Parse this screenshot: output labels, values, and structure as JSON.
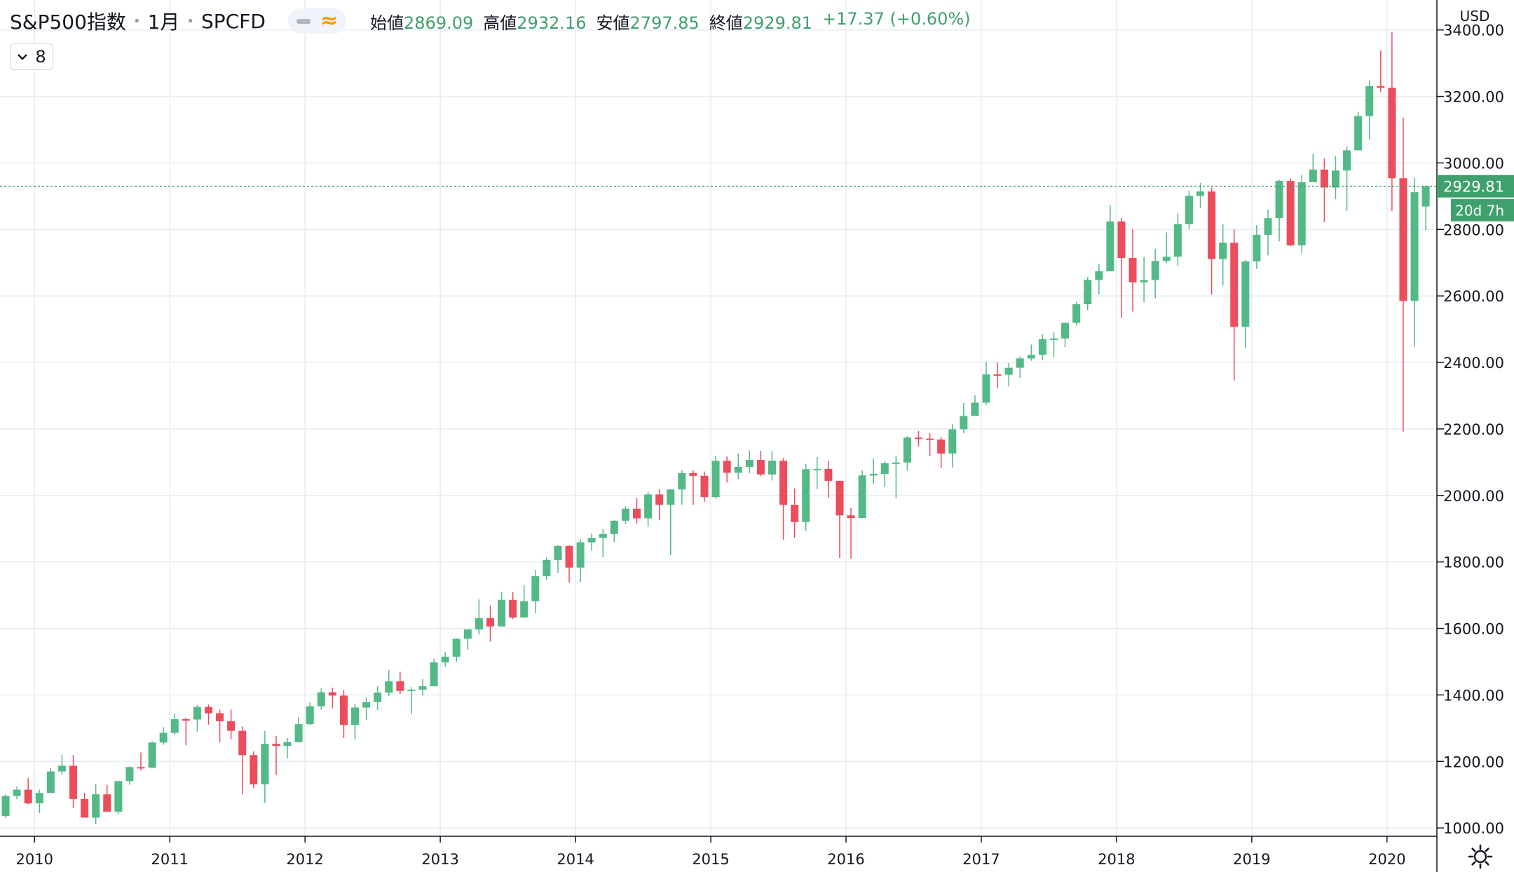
{
  "header": {
    "symbol_name": "S&P500指数",
    "interval": "1月",
    "ticker": "SPCFD",
    "open_label": "始値",
    "open_value": "2869.09",
    "high_label": "高値",
    "high_value": "2932.16",
    "low_label": "安値",
    "low_value": "2797.85",
    "close_label": "終値",
    "close_value": "2929.81",
    "change": "+17.37 (+0.60%)"
  },
  "indicator_toggle": {
    "count": "8"
  },
  "price_axis": {
    "currency": "USD",
    "last_price_label": "2929.81",
    "countdown_label": "20d 7h"
  },
  "colors": {
    "up": "#53b987",
    "down": "#eb4d5c",
    "grid": "#e6edf3",
    "badge": "#3fa06e"
  },
  "icons": {
    "collapse": "chevron-down-icon",
    "settings": "gear-icon",
    "style_dash": "dash-icon",
    "style_wave": "approx-icon"
  },
  "chart_data": {
    "type": "candlestick",
    "x_labels": [
      "2010",
      "2011",
      "2012",
      "2013",
      "2014",
      "2015",
      "2016",
      "2017",
      "2018",
      "2019",
      "2020"
    ],
    "y_ticks": [
      "3400.00",
      "3200.00",
      "3000.00",
      "2800.00",
      "2600.00",
      "2400.00",
      "2200.00",
      "2000.00",
      "1800.00",
      "1600.00",
      "1400.00",
      "1200.00",
      "1000.00"
    ],
    "y_tick_values": [
      3400,
      3200,
      3000,
      2800,
      2600,
      2400,
      2200,
      2000,
      1800,
      1600,
      1400,
      1200,
      1000
    ],
    "ylim": [
      975,
      3490
    ],
    "start": "2009-10",
    "last_price": 2929.81,
    "candles": [
      [
        1036,
        1101,
        1030,
        1096
      ],
      [
        1096,
        1125,
        1086,
        1115
      ],
      [
        1115,
        1150,
        1071,
        1074
      ],
      [
        1074,
        1115,
        1045,
        1105
      ],
      [
        1105,
        1180,
        1105,
        1170
      ],
      [
        1170,
        1220,
        1160,
        1187
      ],
      [
        1187,
        1219,
        1060,
        1087
      ],
      [
        1087,
        1105,
        1040,
        1031
      ],
      [
        1031,
        1131,
        1011,
        1101
      ],
      [
        1101,
        1130,
        1050,
        1049
      ],
      [
        1049,
        1126,
        1040,
        1141
      ],
      [
        1141,
        1185,
        1130,
        1183
      ],
      [
        1183,
        1227,
        1173,
        1181
      ],
      [
        1181,
        1260,
        1180,
        1257
      ],
      [
        1257,
        1303,
        1250,
        1286
      ],
      [
        1286,
        1344,
        1280,
        1327
      ],
      [
        1327,
        1332,
        1249,
        1326
      ],
      [
        1326,
        1370,
        1290,
        1364
      ],
      [
        1364,
        1371,
        1311,
        1345
      ],
      [
        1345,
        1356,
        1258,
        1321
      ],
      [
        1321,
        1356,
        1267,
        1292
      ],
      [
        1292,
        1305,
        1101,
        1219
      ],
      [
        1219,
        1230,
        1120,
        1131
      ],
      [
        1131,
        1292,
        1075,
        1253
      ],
      [
        1253,
        1277,
        1159,
        1247
      ],
      [
        1247,
        1270,
        1210,
        1258
      ],
      [
        1258,
        1333,
        1258,
        1312
      ],
      [
        1312,
        1378,
        1310,
        1366
      ],
      [
        1366,
        1420,
        1356,
        1408
      ],
      [
        1408,
        1422,
        1360,
        1398
      ],
      [
        1398,
        1416,
        1270,
        1310
      ],
      [
        1310,
        1372,
        1266,
        1362
      ],
      [
        1362,
        1392,
        1325,
        1379
      ],
      [
        1379,
        1426,
        1355,
        1407
      ],
      [
        1407,
        1474,
        1396,
        1441
      ],
      [
        1441,
        1470,
        1403,
        1412
      ],
      [
        1412,
        1424,
        1343,
        1416
      ],
      [
        1416,
        1448,
        1398,
        1426
      ],
      [
        1426,
        1509,
        1426,
        1498
      ],
      [
        1498,
        1530,
        1485,
        1515
      ],
      [
        1515,
        1570,
        1500,
        1569
      ],
      [
        1569,
        1598,
        1536,
        1597
      ],
      [
        1597,
        1687,
        1581,
        1631
      ],
      [
        1631,
        1669,
        1560,
        1606
      ],
      [
        1606,
        1710,
        1606,
        1686
      ],
      [
        1686,
        1710,
        1628,
        1633
      ],
      [
        1633,
        1730,
        1633,
        1682
      ],
      [
        1682,
        1776,
        1646,
        1757
      ],
      [
        1757,
        1814,
        1746,
        1806
      ],
      [
        1806,
        1850,
        1767,
        1848
      ],
      [
        1848,
        1850,
        1738,
        1783
      ],
      [
        1783,
        1868,
        1740,
        1859
      ],
      [
        1859,
        1885,
        1834,
        1872
      ],
      [
        1872,
        1898,
        1814,
        1884
      ],
      [
        1884,
        1925,
        1860,
        1924
      ],
      [
        1924,
        1968,
        1914,
        1960
      ],
      [
        1960,
        1992,
        1915,
        1931
      ],
      [
        1931,
        2011,
        1905,
        2003
      ],
      [
        2003,
        2019,
        1926,
        1972
      ],
      [
        1972,
        2018,
        1821,
        2018
      ],
      [
        2018,
        2076,
        1972,
        2067
      ],
      [
        2067,
        2076,
        1972,
        2059
      ],
      [
        2059,
        2072,
        1981,
        1995
      ],
      [
        1995,
        2119,
        1990,
        2104
      ],
      [
        2104,
        2117,
        2039,
        2068
      ],
      [
        2068,
        2126,
        2048,
        2086
      ],
      [
        2086,
        2135,
        2067,
        2107
      ],
      [
        2107,
        2134,
        2058,
        2063
      ],
      [
        2063,
        2133,
        2045,
        2104
      ],
      [
        2104,
        2113,
        1867,
        1972
      ],
      [
        1972,
        2021,
        1872,
        1920
      ],
      [
        1920,
        2095,
        1893,
        2079
      ],
      [
        2079,
        2116,
        2019,
        2080
      ],
      [
        2080,
        2104,
        1993,
        2044
      ],
      [
        2044,
        2044,
        1812,
        1940
      ],
      [
        1940,
        1962,
        1810,
        1932
      ],
      [
        1932,
        2075,
        1932,
        2060
      ],
      [
        2060,
        2111,
        2034,
        2065
      ],
      [
        2065,
        2103,
        2025,
        2097
      ],
      [
        2097,
        2120,
        1992,
        2099
      ],
      [
        2099,
        2178,
        2074,
        2174
      ],
      [
        2174,
        2194,
        2147,
        2171
      ],
      [
        2171,
        2187,
        2119,
        2168
      ],
      [
        2168,
        2176,
        2083,
        2126
      ],
      [
        2126,
        2214,
        2084,
        2199
      ],
      [
        2199,
        2278,
        2187,
        2239
      ],
      [
        2239,
        2301,
        2245,
        2279
      ],
      [
        2279,
        2401,
        2272,
        2364
      ],
      [
        2364,
        2400,
        2322,
        2363
      ],
      [
        2363,
        2398,
        2328,
        2384
      ],
      [
        2384,
        2418,
        2353,
        2412
      ],
      [
        2412,
        2454,
        2405,
        2423
      ],
      [
        2423,
        2484,
        2407,
        2470
      ],
      [
        2470,
        2490,
        2417,
        2472
      ],
      [
        2472,
        2519,
        2446,
        2519
      ],
      [
        2519,
        2582,
        2511,
        2575
      ],
      [
        2575,
        2657,
        2557,
        2648
      ],
      [
        2648,
        2695,
        2605,
        2674
      ],
      [
        2674,
        2873,
        2682,
        2824
      ],
      [
        2824,
        2835,
        2533,
        2714
      ],
      [
        2714,
        2801,
        2553,
        2641
      ],
      [
        2641,
        2718,
        2581,
        2648
      ],
      [
        2648,
        2742,
        2594,
        2705
      ],
      [
        2705,
        2791,
        2698,
        2718
      ],
      [
        2718,
        2848,
        2691,
        2816
      ],
      [
        2816,
        2916,
        2802,
        2901
      ],
      [
        2901,
        2940,
        2864,
        2914
      ],
      [
        2914,
        2926,
        2604,
        2711
      ],
      [
        2711,
        2815,
        2631,
        2760
      ],
      [
        2760,
        2800,
        2346,
        2507
      ],
      [
        2507,
        2708,
        2443,
        2704
      ],
      [
        2704,
        2813,
        2681,
        2784
      ],
      [
        2784,
        2860,
        2722,
        2834
      ],
      [
        2834,
        2949,
        2764,
        2946
      ],
      [
        2946,
        2954,
        2750,
        2752
      ],
      [
        2752,
        2964,
        2728,
        2942
      ],
      [
        2942,
        3028,
        2952,
        2980
      ],
      [
        2980,
        3014,
        2822,
        2926
      ],
      [
        2926,
        3021,
        2891,
        2977
      ],
      [
        2977,
        3050,
        2856,
        3038
      ],
      [
        3038,
        3154,
        3050,
        3141
      ],
      [
        3141,
        3248,
        3070,
        3231
      ],
      [
        3231,
        3338,
        3214,
        3226
      ],
      [
        3226,
        3394,
        2855,
        2954
      ],
      [
        2954,
        3136,
        2192,
        2585
      ],
      [
        2585,
        2955,
        2447,
        2912
      ],
      [
        2869,
        2932,
        2798,
        2930
      ]
    ]
  }
}
